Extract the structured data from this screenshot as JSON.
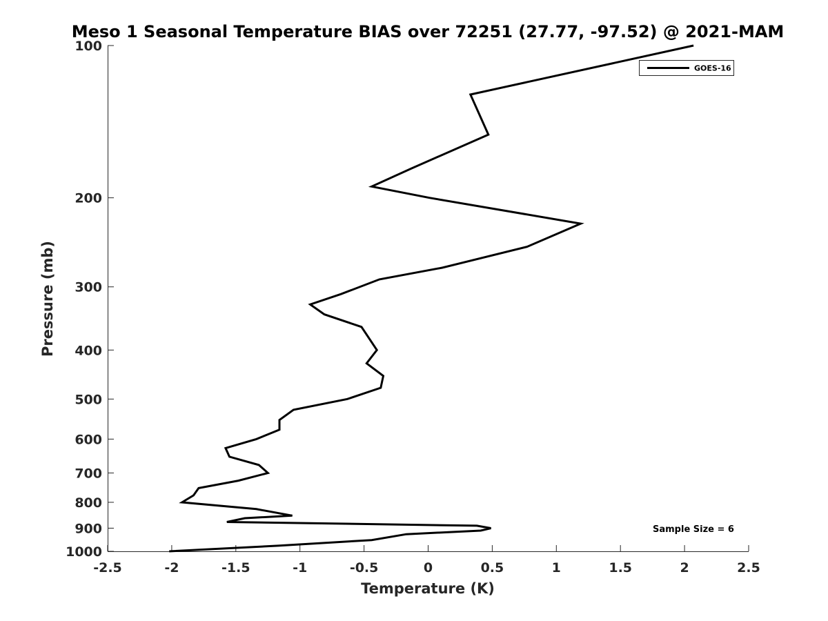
{
  "chart_data": {
    "type": "line",
    "title": "Meso 1 Seasonal Temperature BIAS over 72251 (27.77, -97.52) @ 2021-MAM",
    "xlabel": "Temperature (K)",
    "ylabel": "Pressure (mb)",
    "xlim": [
      -2.5,
      2.5
    ],
    "ylim": [
      1000,
      100
    ],
    "yscale": "log",
    "grid": false,
    "xticks": [
      -2.5,
      -2,
      -1.5,
      -1,
      -0.5,
      0,
      0.5,
      1,
      1.5,
      2,
      2.5
    ],
    "xtick_labels": [
      "-2.5",
      "-2",
      "-1.5",
      "-1",
      "-0.5",
      "0",
      "0.5",
      "1",
      "1.5",
      "2",
      "2.5"
    ],
    "yticks": [
      100,
      200,
      300,
      400,
      500,
      600,
      700,
      800,
      900,
      1000
    ],
    "ytick_labels": [
      "100",
      "200",
      "300",
      "400",
      "500",
      "600",
      "700",
      "800",
      "900",
      "1000"
    ],
    "legend": {
      "position": "top-right",
      "entries": [
        "GOES-16"
      ]
    },
    "annotation": "Sample Size = 6",
    "series": [
      {
        "name": "GOES-16",
        "color": "#000000",
        "points": [
          [
            2.07,
            100
          ],
          [
            0.33,
            125
          ],
          [
            0.47,
            150
          ],
          [
            -0.13,
            175
          ],
          [
            -0.44,
            190
          ],
          [
            0.01,
            200
          ],
          [
            1.19,
            225
          ],
          [
            0.77,
            250
          ],
          [
            0.11,
            275
          ],
          [
            -0.38,
            290
          ],
          [
            -0.68,
            310
          ],
          [
            -0.92,
            325
          ],
          [
            -0.81,
            340
          ],
          [
            -0.52,
            360
          ],
          [
            -0.4,
            400
          ],
          [
            -0.48,
            425
          ],
          [
            -0.35,
            450
          ],
          [
            -0.37,
            475
          ],
          [
            -0.63,
            500
          ],
          [
            -1.05,
            525
          ],
          [
            -1.16,
            550
          ],
          [
            -1.16,
            575
          ],
          [
            -1.34,
            600
          ],
          [
            -1.58,
            625
          ],
          [
            -1.55,
            650
          ],
          [
            -1.32,
            675
          ],
          [
            -1.25,
            700
          ],
          [
            -1.48,
            725
          ],
          [
            -1.79,
            750
          ],
          [
            -1.83,
            775
          ],
          [
            -1.92,
            800
          ],
          [
            -1.34,
            825
          ],
          [
            -1.06,
            850
          ],
          [
            -1.43,
            860
          ],
          [
            -1.57,
            875
          ],
          [
            0.38,
            890
          ],
          [
            0.49,
            900
          ],
          [
            0.41,
            910
          ],
          [
            -0.17,
            925
          ],
          [
            -0.44,
            950
          ],
          [
            -1.17,
            975
          ],
          [
            -2.02,
            1000
          ]
        ]
      }
    ]
  }
}
